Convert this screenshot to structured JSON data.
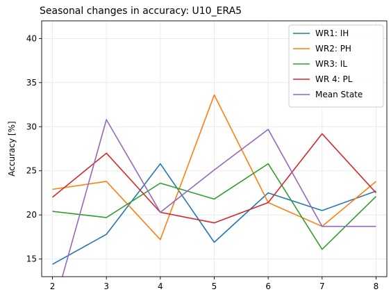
{
  "chart_data": {
    "type": "line",
    "title": "Seasonal changes in accuracy: U10_ERA5",
    "xlabel": "",
    "ylabel": "Accuracy [%]",
    "x": [
      2,
      3,
      4,
      5,
      6,
      7,
      8
    ],
    "xticks": [
      "2",
      "3",
      "4",
      "5",
      "6",
      "7",
      "8"
    ],
    "yticks": [
      "15",
      "20",
      "25",
      "30",
      "35",
      "40"
    ],
    "xlim": [
      1.8,
      8.2
    ],
    "ylim": [
      13,
      42
    ],
    "grid": true,
    "legend_position": "top-right",
    "series": [
      {
        "name": "WR1: IH",
        "color": "#1f77b4",
        "values": [
          14.4,
          17.8,
          25.8,
          16.9,
          22.5,
          20.5,
          22.7
        ]
      },
      {
        "name": "WR2: PH",
        "color": "#ff7f0e",
        "values": [
          22.9,
          23.8,
          17.2,
          33.6,
          21.4,
          18.7,
          23.8
        ]
      },
      {
        "name": "WR3: IL",
        "color": "#2ca02c",
        "values": [
          20.4,
          19.7,
          23.6,
          21.8,
          25.8,
          16.1,
          22.1
        ]
      },
      {
        "name": "WR 4: PL",
        "color": "#d62728",
        "values": [
          22.0,
          27.0,
          20.3,
          19.1,
          21.4,
          29.2,
          22.5
        ]
      },
      {
        "name": "Mean State",
        "color": "#9467bd",
        "values": [
          9.0,
          30.8,
          20.3,
          25.1,
          29.7,
          18.7,
          18.7
        ]
      }
    ]
  }
}
